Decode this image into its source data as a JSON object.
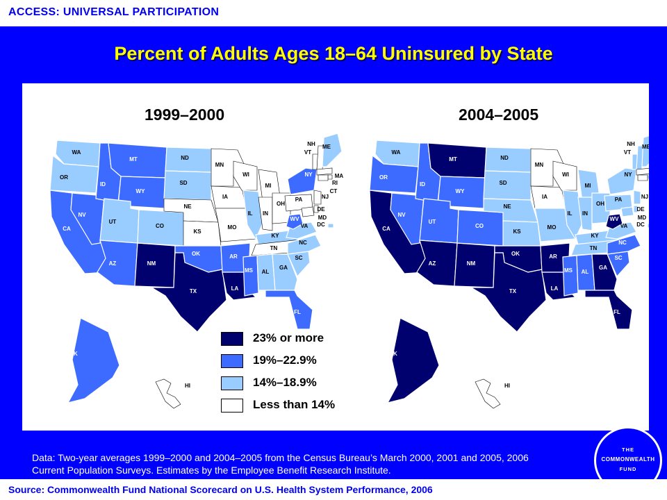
{
  "header": {
    "section": "ACCESS: UNIVERSAL PARTICIPATION"
  },
  "title": "Percent of Adults Ages 18–64 Uninsured by State",
  "colors": {
    "panel": "#0000ff",
    "title": "#ffff00",
    "cat_23_plus": "#00006e",
    "cat_19_22_9": "#3d6bff",
    "cat_14_18_9": "#99ccff",
    "cat_lt_14": "#ffffff"
  },
  "maps": [
    {
      "title": "1999–2000"
    },
    {
      "title": "2004–2005"
    }
  ],
  "legend": [
    {
      "label": "23% or more",
      "color": "#00006e"
    },
    {
      "label": "19%–22.9%",
      "color": "#3d6bff"
    },
    {
      "label": "14%–18.9%",
      "color": "#99ccff"
    },
    {
      "label": "Less than 14%",
      "color": "#ffffff"
    }
  ],
  "state_labels": [
    "WA",
    "OR",
    "CA",
    "NV",
    "ID",
    "MT",
    "WY",
    "UT",
    "AZ",
    "NM",
    "CO",
    "ND",
    "SD",
    "NE",
    "KS",
    "OK",
    "TX",
    "MN",
    "IA",
    "MO",
    "AR",
    "LA",
    "WI",
    "IL",
    "MI",
    "IN",
    "OH",
    "KY",
    "TN",
    "MS",
    "AL",
    "GA",
    "FL",
    "SC",
    "NC",
    "VA",
    "WV",
    "PA",
    "NY",
    "VT",
    "NH",
    "ME",
    "MA",
    "RI",
    "CT",
    "NJ",
    "DE",
    "MD",
    "DC",
    "AK",
    "HI"
  ],
  "note": "Data: Two-year averages 1999–2000 and 2004–2005 from the Census Bureau’s March 2000, 2001 and 2005, 2006 Current Population Surveys. Estimates by the Employee Benefit Research Institute.",
  "logo": {
    "line1": "THE",
    "line2": "COMMONWEALTH",
    "line3": "FUND"
  },
  "source": "Source: Commonwealth Fund National Scorecard on U.S. Health System Performance, 2006"
}
